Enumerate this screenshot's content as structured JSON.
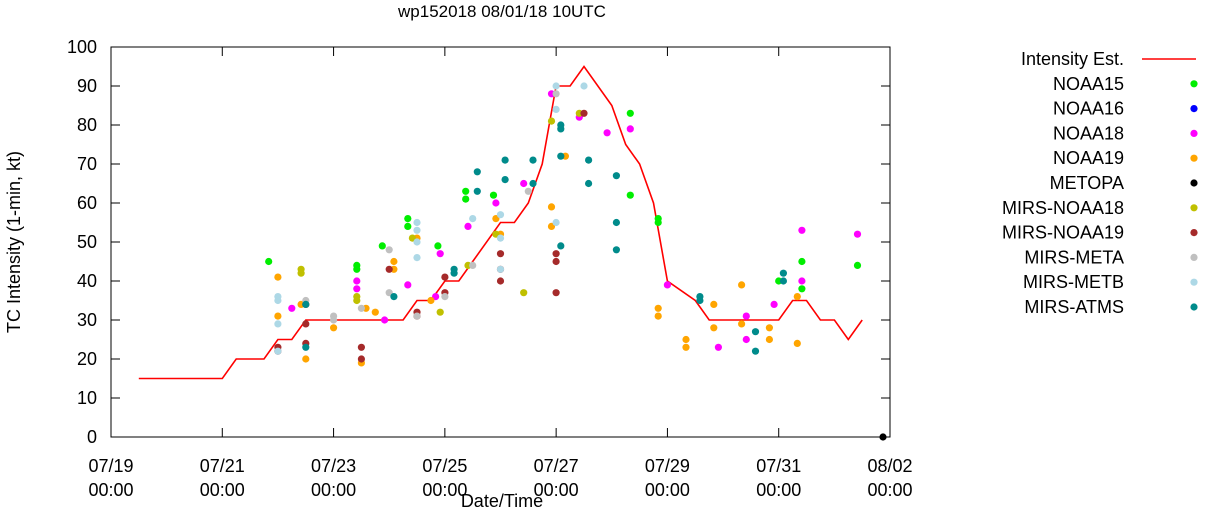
{
  "chart_data": {
    "type": "scatter",
    "title": "wp152018 08/01/18 10UTC",
    "xlabel": "Date/Time",
    "ylabel": "TC Intensity (1-min, kt)",
    "xlim": [
      "2018-07-19T00:00",
      "2018-08-02T00:00"
    ],
    "ylim": [
      0,
      100
    ],
    "yticks": [
      0,
      10,
      20,
      30,
      40,
      50,
      60,
      70,
      80,
      90,
      100
    ],
    "xticks": [
      {
        "x": "2018-07-19T00:00",
        "line1": "07/19",
        "line2": "00:00"
      },
      {
        "x": "2018-07-21T00:00",
        "line1": "07/21",
        "line2": "00:00"
      },
      {
        "x": "2018-07-23T00:00",
        "line1": "07/23",
        "line2": "00:00"
      },
      {
        "x": "2018-07-25T00:00",
        "line1": "07/25",
        "line2": "00:00"
      },
      {
        "x": "2018-07-27T00:00",
        "line1": "07/27",
        "line2": "00:00"
      },
      {
        "x": "2018-07-29T00:00",
        "line1": "07/29",
        "line2": "00:00"
      },
      {
        "x": "2018-07-31T00:00",
        "line1": "07/31",
        "line2": "00:00"
      },
      {
        "x": "2018-08-02T00:00",
        "line1": "08/02",
        "line2": "00:00"
      }
    ],
    "grid": false,
    "legend_position": "right, outside",
    "line": {
      "name": "Intensity Est.",
      "color": "#ff0000",
      "points": [
        [
          "2018-07-19T12:00",
          15
        ],
        [
          "2018-07-21T00:00",
          15
        ],
        [
          "2018-07-21T06:00",
          20
        ],
        [
          "2018-07-21T18:00",
          20
        ],
        [
          "2018-07-22T00:00",
          25
        ],
        [
          "2018-07-22T06:00",
          25
        ],
        [
          "2018-07-22T12:00",
          30
        ],
        [
          "2018-07-24T06:00",
          30
        ],
        [
          "2018-07-24T12:00",
          35
        ],
        [
          "2018-07-24T18:00",
          35
        ],
        [
          "2018-07-25T00:00",
          40
        ],
        [
          "2018-07-25T06:00",
          40
        ],
        [
          "2018-07-25T12:00",
          45
        ],
        [
          "2018-07-26T00:00",
          55
        ],
        [
          "2018-07-26T06:00",
          55
        ],
        [
          "2018-07-26T12:00",
          60
        ],
        [
          "2018-07-26T18:00",
          70
        ],
        [
          "2018-07-27T00:00",
          90
        ],
        [
          "2018-07-27T06:00",
          90
        ],
        [
          "2018-07-27T12:00",
          95
        ],
        [
          "2018-07-28T00:00",
          85
        ],
        [
          "2018-07-28T06:00",
          75
        ],
        [
          "2018-07-28T12:00",
          70
        ],
        [
          "2018-07-28T18:00",
          60
        ],
        [
          "2018-07-29T00:00",
          40
        ],
        [
          "2018-07-29T12:00",
          35
        ],
        [
          "2018-07-29T18:00",
          30
        ],
        [
          "2018-07-30T00:00",
          30
        ],
        [
          "2018-07-31T00:00",
          30
        ],
        [
          "2018-07-31T06:00",
          35
        ],
        [
          "2018-07-31T12:00",
          35
        ],
        [
          "2018-07-31T18:00",
          30
        ],
        [
          "2018-08-01T00:00",
          30
        ],
        [
          "2018-08-01T06:00",
          25
        ],
        [
          "2018-08-01T12:00",
          30
        ]
      ]
    },
    "series": [
      {
        "name": "NOAA15",
        "color": "#00ee00",
        "points": [
          [
            "2018-07-21T20:00",
            45
          ],
          [
            "2018-07-23T10:00",
            44
          ],
          [
            "2018-07-23T10:00",
            43
          ],
          [
            "2018-07-23T21:00",
            49
          ],
          [
            "2018-07-24T08:00",
            54
          ],
          [
            "2018-07-24T08:00",
            56
          ],
          [
            "2018-07-24T21:00",
            49
          ],
          [
            "2018-07-25T09:00",
            63
          ],
          [
            "2018-07-25T09:00",
            61
          ],
          [
            "2018-07-25T21:00",
            62
          ],
          [
            "2018-07-28T08:00",
            83
          ],
          [
            "2018-07-28T08:00",
            62
          ],
          [
            "2018-07-28T20:00",
            56
          ],
          [
            "2018-07-28T20:00",
            55
          ],
          [
            "2018-07-31T00:00",
            40
          ],
          [
            "2018-07-31T10:00",
            45
          ],
          [
            "2018-07-31T10:00",
            38
          ],
          [
            "2018-08-01T10:00",
            44
          ]
        ]
      },
      {
        "name": "NOAA16",
        "color": "#0000ff",
        "points": []
      },
      {
        "name": "NOAA18",
        "color": "#ff00ff",
        "points": [
          [
            "2018-07-22T06:00",
            33
          ],
          [
            "2018-07-23T10:00",
            40
          ],
          [
            "2018-07-23T10:00",
            38
          ],
          [
            "2018-07-23T22:00",
            30
          ],
          [
            "2018-07-24T08:00",
            39
          ],
          [
            "2018-07-24T20:00",
            36
          ],
          [
            "2018-07-24T22:00",
            47
          ],
          [
            "2018-07-25T10:00",
            54
          ],
          [
            "2018-07-25T22:00",
            60
          ],
          [
            "2018-07-26T10:00",
            65
          ],
          [
            "2018-07-26T22:00",
            88
          ],
          [
            "2018-07-27T10:00",
            82
          ],
          [
            "2018-07-27T22:00",
            78
          ],
          [
            "2018-07-28T08:00",
            79
          ],
          [
            "2018-07-29T00:00",
            39
          ],
          [
            "2018-07-29T22:00",
            23
          ],
          [
            "2018-07-30T10:00",
            25
          ],
          [
            "2018-07-30T10:00",
            31
          ],
          [
            "2018-07-30T22:00",
            34
          ],
          [
            "2018-07-31T10:00",
            53
          ],
          [
            "2018-07-31T10:00",
            40
          ],
          [
            "2018-08-01T10:00",
            52
          ]
        ]
      },
      {
        "name": "NOAA19",
        "color": "#ffa500",
        "points": [
          [
            "2018-07-22T00:00",
            41
          ],
          [
            "2018-07-22T00:00",
            31
          ],
          [
            "2018-07-22T10:00",
            34
          ],
          [
            "2018-07-22T12:00",
            20
          ],
          [
            "2018-07-23T00:00",
            28
          ],
          [
            "2018-07-23T12:00",
            19
          ],
          [
            "2018-07-23T14:00",
            33
          ],
          [
            "2018-07-23T18:00",
            32
          ],
          [
            "2018-07-24T02:00",
            43
          ],
          [
            "2018-07-24T02:00",
            45
          ],
          [
            "2018-07-24T12:00",
            51
          ],
          [
            "2018-07-24T18:00",
            35
          ],
          [
            "2018-07-25T22:00",
            56
          ],
          [
            "2018-07-26T00:00",
            52
          ],
          [
            "2018-07-26T22:00",
            59
          ],
          [
            "2018-07-26T22:00",
            54
          ],
          [
            "2018-07-27T04:00",
            72
          ],
          [
            "2018-07-28T20:00",
            33
          ],
          [
            "2018-07-28T20:00",
            31
          ],
          [
            "2018-07-29T08:00",
            25
          ],
          [
            "2018-07-29T08:00",
            23
          ],
          [
            "2018-07-29T20:00",
            34
          ],
          [
            "2018-07-29T20:00",
            28
          ],
          [
            "2018-07-30T08:00",
            39
          ],
          [
            "2018-07-30T08:00",
            29
          ],
          [
            "2018-07-30T20:00",
            28
          ],
          [
            "2018-07-30T20:00",
            25
          ],
          [
            "2018-07-31T08:00",
            24
          ],
          [
            "2018-07-31T08:00",
            36
          ]
        ]
      },
      {
        "name": "METOPA",
        "color": "#000000",
        "points": [
          [
            "2018-08-01T21:00",
            0
          ]
        ]
      },
      {
        "name": "MIRS-NOAA18",
        "color": "#c0c000",
        "points": [
          [
            "2018-07-22T10:00",
            43
          ],
          [
            "2018-07-22T10:00",
            42
          ],
          [
            "2018-07-23T10:00",
            36
          ],
          [
            "2018-07-23T10:00",
            35
          ],
          [
            "2018-07-24T10:00",
            51
          ],
          [
            "2018-07-24T22:00",
            32
          ],
          [
            "2018-07-25T10:00",
            44
          ],
          [
            "2018-07-25T22:00",
            52
          ],
          [
            "2018-07-26T10:00",
            37
          ],
          [
            "2018-07-26T22:00",
            81
          ],
          [
            "2018-07-27T10:00",
            83
          ]
        ]
      },
      {
        "name": "MIRS-NOAA19",
        "color": "#a52a2a",
        "points": [
          [
            "2018-07-22T00:00",
            23
          ],
          [
            "2018-07-22T00:00",
            22
          ],
          [
            "2018-07-22T12:00",
            34
          ],
          [
            "2018-07-22T12:00",
            29
          ],
          [
            "2018-07-22T12:00",
            24
          ],
          [
            "2018-07-23T12:00",
            23
          ],
          [
            "2018-07-23T12:00",
            20
          ],
          [
            "2018-07-24T00:00",
            43
          ],
          [
            "2018-07-24T12:00",
            31
          ],
          [
            "2018-07-24T12:00",
            32
          ],
          [
            "2018-07-25T00:00",
            41
          ],
          [
            "2018-07-25T00:00",
            37
          ],
          [
            "2018-07-26T00:00",
            47
          ],
          [
            "2018-07-26T00:00",
            43
          ],
          [
            "2018-07-26T00:00",
            40
          ],
          [
            "2018-07-27T00:00",
            47
          ],
          [
            "2018-07-27T00:00",
            45
          ],
          [
            "2018-07-27T00:00",
            37
          ],
          [
            "2018-07-27T12:00",
            83
          ]
        ]
      },
      {
        "name": "MIRS-META",
        "color": "#c0c0c0",
        "points": [
          [
            "2018-07-22T12:00",
            35
          ],
          [
            "2018-07-23T00:00",
            31
          ],
          [
            "2018-07-23T00:00",
            30
          ],
          [
            "2018-07-23T12:00",
            33
          ],
          [
            "2018-07-24T00:00",
            48
          ],
          [
            "2018-07-24T00:00",
            37
          ],
          [
            "2018-07-24T12:00",
            31
          ],
          [
            "2018-07-25T00:00",
            36
          ],
          [
            "2018-07-25T12:00",
            44
          ],
          [
            "2018-07-26T12:00",
            63
          ],
          [
            "2018-07-27T00:00",
            88
          ]
        ]
      },
      {
        "name": "MIRS-METB",
        "color": "#add8e6",
        "points": [
          [
            "2018-07-22T00:00",
            36
          ],
          [
            "2018-07-22T00:00",
            35
          ],
          [
            "2018-07-22T00:00",
            29
          ],
          [
            "2018-07-22T00:00",
            22
          ],
          [
            "2018-07-24T12:00",
            55
          ],
          [
            "2018-07-24T12:00",
            53
          ],
          [
            "2018-07-24T12:00",
            50
          ],
          [
            "2018-07-24T12:00",
            46
          ],
          [
            "2018-07-25T12:00",
            56
          ],
          [
            "2018-07-26T00:00",
            57
          ],
          [
            "2018-07-26T00:00",
            51
          ],
          [
            "2018-07-26T00:00",
            43
          ],
          [
            "2018-07-27T00:00",
            90
          ],
          [
            "2018-07-27T00:00",
            84
          ],
          [
            "2018-07-27T00:00",
            55
          ],
          [
            "2018-07-27T12:00",
            90
          ]
        ]
      },
      {
        "name": "MIRS-ATMS",
        "color": "#008b8b",
        "points": [
          [
            "2018-07-22T12:00",
            34
          ],
          [
            "2018-07-22T12:00",
            23
          ],
          [
            "2018-07-24T02:00",
            36
          ],
          [
            "2018-07-25T04:00",
            43
          ],
          [
            "2018-07-25T04:00",
            42
          ],
          [
            "2018-07-25T14:00",
            68
          ],
          [
            "2018-07-25T14:00",
            63
          ],
          [
            "2018-07-26T02:00",
            71
          ],
          [
            "2018-07-26T02:00",
            66
          ],
          [
            "2018-07-26T14:00",
            71
          ],
          [
            "2018-07-26T14:00",
            65
          ],
          [
            "2018-07-27T02:00",
            80
          ],
          [
            "2018-07-27T02:00",
            79
          ],
          [
            "2018-07-27T02:00",
            72
          ],
          [
            "2018-07-27T02:00",
            49
          ],
          [
            "2018-07-27T14:00",
            71
          ],
          [
            "2018-07-27T14:00",
            65
          ],
          [
            "2018-07-28T02:00",
            67
          ],
          [
            "2018-07-28T02:00",
            55
          ],
          [
            "2018-07-28T02:00",
            48
          ],
          [
            "2018-07-29T14:00",
            36
          ],
          [
            "2018-07-29T14:00",
            35
          ],
          [
            "2018-07-30T14:00",
            27
          ],
          [
            "2018-07-30T14:00",
            22
          ],
          [
            "2018-07-31T02:00",
            42
          ],
          [
            "2018-07-31T02:00",
            40
          ]
        ]
      }
    ]
  }
}
